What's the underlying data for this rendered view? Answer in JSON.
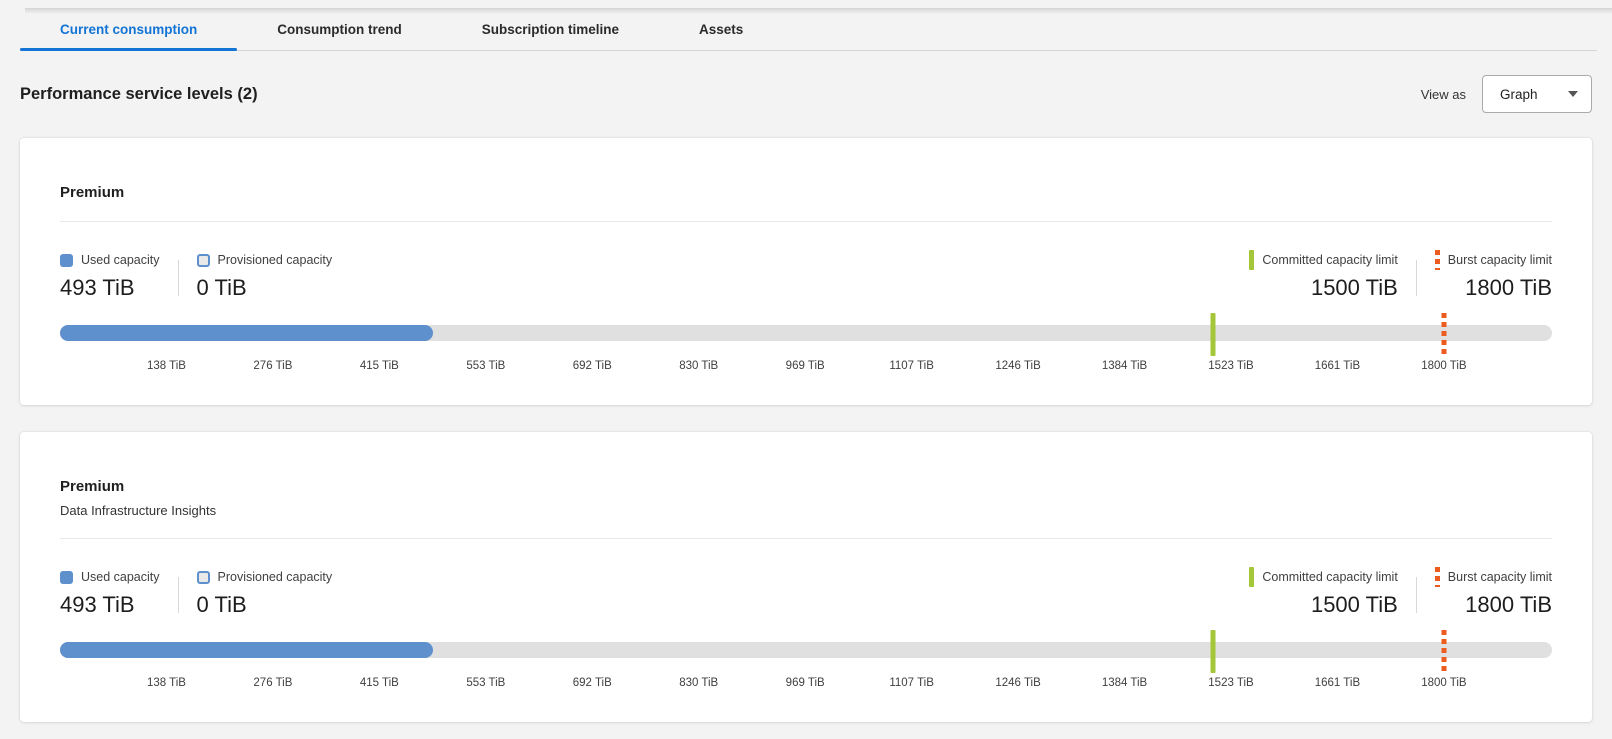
{
  "colors": {
    "accent_blue": "#1274d4",
    "used_blue": "#5e90ce",
    "committed_green": "#a4c639",
    "burst_orange": "#ee5b1f",
    "track_gray": "#e0e0e0",
    "page_background": "#f3f3f3"
  },
  "tabs": [
    {
      "label": "Current consumption",
      "active": true
    },
    {
      "label": "Consumption trend",
      "active": false
    },
    {
      "label": "Subscription timeline",
      "active": false
    },
    {
      "label": "Assets",
      "active": false
    }
  ],
  "header": {
    "title": "Performance service levels (2)",
    "view_as_label": "View as",
    "view_selector": {
      "value": "Graph",
      "icon": "chevron-down-icon"
    }
  },
  "cards": [
    {
      "title": "Premium",
      "legend": {
        "used": {
          "label": "Used capacity",
          "value": "493 TiB"
        },
        "provisioned": {
          "label": "Provisioned capacity",
          "value": "0 TiB"
        },
        "committed": {
          "label": "Committed capacity limit",
          "value": "1500 TiB"
        },
        "burst": {
          "label": "Burst capacity limit",
          "value": "1800 TiB"
        }
      },
      "gauge": {
        "used_tib": 493,
        "provisioned_tib": 0,
        "committed_tib": 1500,
        "burst_tib": 1800,
        "scale_max_tib": 1800,
        "fill_pct": 25.0,
        "committed_pct": 77.3,
        "burst_pct": 92.75,
        "tick_step_pct": 7.135
      },
      "ticks": [
        "138 TiB",
        "276 TiB",
        "415 TiB",
        "553 TiB",
        "692 TiB",
        "830 TiB",
        "969 TiB",
        "1107 TiB",
        "1246 TiB",
        "1384 TiB",
        "1523 TiB",
        "1661 TiB",
        "1800 TiB"
      ]
    },
    {
      "title": "Premium",
      "subtitle": "Data Infrastructure Insights",
      "legend": {
        "used": {
          "label": "Used capacity",
          "value": "493 TiB"
        },
        "provisioned": {
          "label": "Provisioned capacity",
          "value": "0 TiB"
        },
        "committed": {
          "label": "Committed capacity limit",
          "value": "1500 TiB"
        },
        "burst": {
          "label": "Burst capacity limit",
          "value": "1800 TiB"
        }
      },
      "gauge": {
        "used_tib": 493,
        "provisioned_tib": 0,
        "committed_tib": 1500,
        "burst_tib": 1800,
        "scale_max_tib": 1800,
        "fill_pct": 25.0,
        "committed_pct": 77.3,
        "burst_pct": 92.75,
        "tick_step_pct": 7.135
      },
      "ticks": [
        "138 TiB",
        "276 TiB",
        "415 TiB",
        "553 TiB",
        "692 TiB",
        "830 TiB",
        "969 TiB",
        "1107 TiB",
        "1246 TiB",
        "1384 TiB",
        "1523 TiB",
        "1661 TiB",
        "1800 TiB"
      ]
    }
  ]
}
